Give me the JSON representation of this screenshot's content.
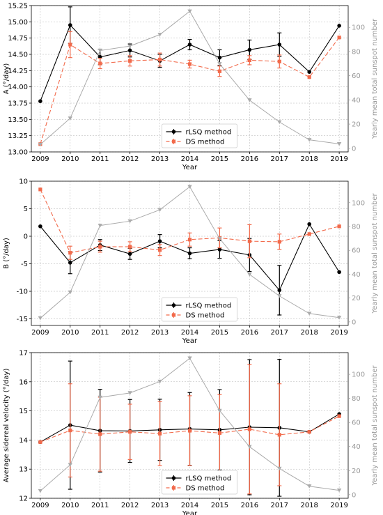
{
  "colors": {
    "rlsq": "#000000",
    "ds": "#f26a4b",
    "sunspot": "#aaaaaa"
  },
  "chart_data": [
    {
      "type": "line",
      "title": "",
      "xlabel": "Year",
      "ylabel": "A (°/day)",
      "y2label": "Yearly mean total sunspot number",
      "x": [
        2009,
        2010,
        2011,
        2012,
        2013,
        2014,
        2015,
        2016,
        2017,
        2018,
        2019
      ],
      "xticks": [
        "2009",
        "2010",
        "2011",
        "2012",
        "2013",
        "2014",
        "2015",
        "2016",
        "2017",
        "2018",
        "2019"
      ],
      "ylim": [
        13.0,
        15.25
      ],
      "yticks": [
        "13.00",
        "13.25",
        "13.50",
        "13.75",
        "14.00",
        "14.25",
        "14.50",
        "14.75",
        "15.00",
        "15.25"
      ],
      "y2lim": [
        -3,
        118
      ],
      "y2ticks": [
        "0",
        "20",
        "40",
        "60",
        "80",
        "100"
      ],
      "legend": {
        "placement": "lower-center",
        "entries": [
          "rLSQ method",
          "DS method"
        ]
      },
      "series": [
        {
          "name": "rLSQ method",
          "color": "#000000",
          "dash": "solid",
          "marker": "circle",
          "values": [
            13.78,
            14.95,
            14.46,
            14.56,
            14.4,
            14.65,
            14.45,
            14.57,
            14.65,
            14.23,
            14.94
          ],
          "errors": [
            0,
            0.28,
            0.12,
            0.1,
            0.1,
            0.08,
            0.12,
            0.15,
            0.18,
            0,
            0
          ]
        },
        {
          "name": "DS method",
          "color": "#f26a4b",
          "dash": "dashed",
          "marker": "square",
          "values": [
            13.12,
            14.65,
            14.36,
            14.4,
            14.42,
            14.35,
            14.24,
            14.41,
            14.39,
            14.15,
            14.76
          ],
          "errors": [
            0,
            0.2,
            0.08,
            0.08,
            0.1,
            0.06,
            0.08,
            0.07,
            0.1,
            0,
            0
          ]
        },
        {
          "name": "Yearly mean total sunspot number",
          "color": "#aaaaaa",
          "axis": "right",
          "marker": "triangle-down",
          "values": [
            3.1,
            24.8,
            80.8,
            84.5,
            94.0,
            113.3,
            69.8,
            39.8,
            21.7,
            7.0,
            3.6
          ]
        }
      ]
    },
    {
      "type": "line",
      "title": "",
      "xlabel": "Year",
      "ylabel": "B (°/day)",
      "y2label": "Yearly mean total sunspot number",
      "x": [
        2009,
        2010,
        2011,
        2012,
        2013,
        2014,
        2015,
        2016,
        2017,
        2018,
        2019
      ],
      "xticks": [
        "2009",
        "2010",
        "2011",
        "2012",
        "2013",
        "2014",
        "2015",
        "2016",
        "2017",
        "2018",
        "2019"
      ],
      "ylim": [
        -16.2,
        10.0
      ],
      "yticks": [
        "-15",
        "-10",
        "-5",
        "0",
        "5",
        "10"
      ],
      "y2lim": [
        -3,
        118
      ],
      "y2ticks": [
        "0",
        "20",
        "40",
        "60",
        "80",
        "100"
      ],
      "legend": {
        "placement": "lower-center",
        "entries": [
          "rLSQ method",
          "DS method"
        ]
      },
      "series": [
        {
          "name": "rLSQ method",
          "color": "#000000",
          "dash": "solid",
          "marker": "circle",
          "values": [
            1.8,
            -4.8,
            -1.6,
            -3.2,
            -0.9,
            -3.1,
            -2.4,
            -3.4,
            -9.8,
            2.2,
            -6.5
          ],
          "errors": [
            0,
            2.0,
            1.0,
            1.0,
            1.2,
            1.0,
            1.6,
            3.0,
            4.5,
            0,
            0
          ]
        },
        {
          "name": "DS method",
          "color": "#f26a4b",
          "dash": "dashed",
          "marker": "square",
          "values": [
            8.5,
            -3.0,
            -1.9,
            -1.9,
            -2.5,
            -0.6,
            -0.3,
            -0.9,
            -1.0,
            0.4,
            1.8
          ],
          "errors": [
            0,
            1.2,
            1.0,
            0.9,
            1.0,
            1.2,
            1.8,
            3.0,
            1.4,
            0,
            0
          ]
        },
        {
          "name": "Yearly mean total sunspot number",
          "color": "#aaaaaa",
          "axis": "right",
          "marker": "triangle-down",
          "values": [
            3.1,
            24.8,
            80.8,
            84.5,
            94.0,
            113.3,
            69.8,
            39.8,
            21.7,
            7.0,
            3.6
          ]
        }
      ]
    },
    {
      "type": "line",
      "title": "",
      "xlabel": "Year",
      "ylabel": "Average sidereal velocity (°/day)",
      "y2label": "Yearly mean total sunspot number",
      "x": [
        2009,
        2010,
        2011,
        2012,
        2013,
        2014,
        2015,
        2016,
        2017,
        2018,
        2019
      ],
      "xticks": [
        "2009",
        "2010",
        "2011",
        "2012",
        "2013",
        "2014",
        "2015",
        "2016",
        "2017",
        "2018",
        "2019"
      ],
      "ylim": [
        12.0,
        17.0
      ],
      "yticks": [
        "12",
        "13",
        "14",
        "15",
        "16",
        "17"
      ],
      "y2lim": [
        -3,
        118
      ],
      "y2ticks": [
        "0",
        "20",
        "40",
        "60",
        "80",
        "100"
      ],
      "legend": {
        "placement": "lower-center",
        "entries": [
          "rLSQ method",
          "DS method"
        ]
      },
      "series": [
        {
          "name": "rLSQ method",
          "color": "#000000",
          "dash": "solid",
          "marker": "circle",
          "values": [
            13.93,
            14.51,
            14.32,
            14.31,
            14.35,
            14.38,
            14.35,
            14.44,
            14.42,
            14.28,
            14.89
          ],
          "errors": [
            0,
            2.2,
            1.42,
            1.08,
            1.05,
            1.25,
            1.38,
            2.32,
            2.35,
            0,
            0
          ]
        },
        {
          "name": "DS method",
          "color": "#f26a4b",
          "dash": "dashed",
          "marker": "square",
          "values": [
            13.93,
            14.33,
            14.2,
            14.28,
            14.22,
            14.32,
            14.24,
            14.37,
            14.18,
            14.28,
            14.82
          ],
          "errors": [
            0,
            1.6,
            1.27,
            0.95,
            1.1,
            1.2,
            1.32,
            2.22,
            1.75,
            0,
            0
          ]
        },
        {
          "name": "Yearly mean total sunspot number",
          "color": "#aaaaaa",
          "axis": "right",
          "marker": "triangle-down",
          "values": [
            3.1,
            24.8,
            80.8,
            84.5,
            94.0,
            113.3,
            69.8,
            39.8,
            21.7,
            7.0,
            3.6
          ]
        }
      ]
    }
  ]
}
